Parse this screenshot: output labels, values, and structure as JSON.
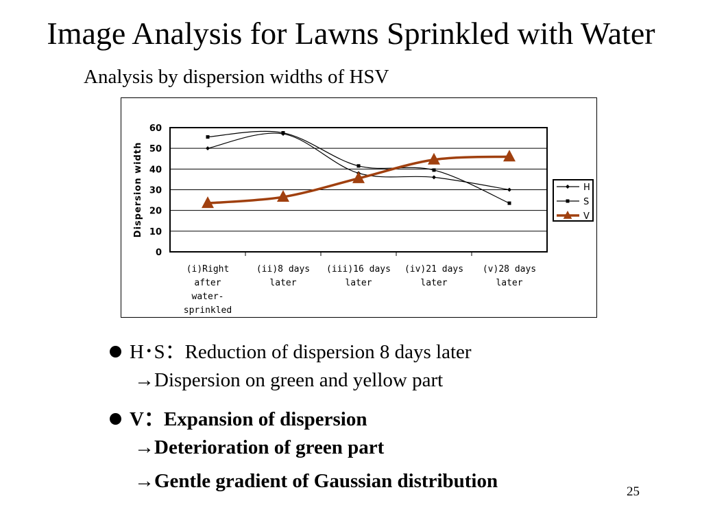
{
  "title": "Image Analysis for Lawns Sprinkled with Water",
  "subtitle": "Analysis by dispersion widths of HSV",
  "chart_data": {
    "type": "line",
    "ylabel": "Dispersion width",
    "ylim": [
      0,
      60
    ],
    "yticks": [
      0,
      10,
      20,
      30,
      40,
      50,
      60
    ],
    "grid": true,
    "legend": "right",
    "categories": [
      [
        "(i)Right",
        "after",
        "water-",
        "sprinkled"
      ],
      [
        "(ii)8 days",
        "later"
      ],
      [
        "(iii)16 days",
        "later"
      ],
      [
        "(iv)21 days",
        "later"
      ],
      [
        "(v)28 days",
        "later"
      ]
    ],
    "series": [
      {
        "name": "H",
        "marker": "diamond",
        "color": "#000000",
        "values": [
          50,
          57,
          38,
          36,
          30
        ]
      },
      {
        "name": "S",
        "marker": "square",
        "color": "#000000",
        "values": [
          55.5,
          57.5,
          41.5,
          39.5,
          23.5
        ]
      },
      {
        "name": "V",
        "marker": "triangle",
        "color": "#a0400f",
        "values": [
          23.5,
          26.5,
          35.5,
          44.5,
          46
        ]
      }
    ]
  },
  "bullets": [
    {
      "text": "H･S：Reduction of dispersion 8 days later",
      "bullet": true,
      "bold": false
    },
    {
      "text": "→Dispersion on green and yellow part",
      "bullet": false,
      "bold": false
    },
    {
      "text": "V：Expansion of dispersion",
      "bullet": true,
      "bold": true
    },
    {
      "text": "→Deterioration of green part",
      "bullet": false,
      "bold": true
    },
    {
      "text": "→Gentle gradient of Gaussian distribution",
      "bullet": false,
      "bold": true
    }
  ],
  "page_number": "25"
}
